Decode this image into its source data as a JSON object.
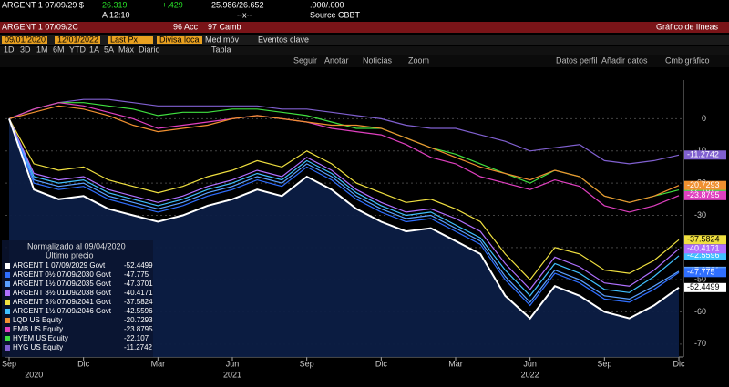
{
  "header": {
    "row1": [
      "ARGENT 1 07/09/29 $",
      "26.319",
      "+.429",
      "25.986/26.652",
      ".000/.000"
    ],
    "row2": [
      "A 12:10",
      "--x--",
      "Source CBBT"
    ],
    "bar": [
      "ARGENT 1 07/09/2C",
      "96 Acc",
      "97 Camb",
      "Gráfico de líneas"
    ],
    "settings": [
      "09/01/2020",
      "12/01/2022",
      "Last Px",
      "Divisa local",
      "Med móv",
      "Eventos clave"
    ],
    "periods": [
      "1D",
      "3D",
      "1M",
      "6M",
      "YTD",
      "1A",
      "5A",
      "Máx",
      "Diario",
      "Tabla"
    ],
    "tools": [
      "Seguir",
      "Anotar",
      "Noticias",
      "Zoom",
      "Datos perfil",
      "Añadir datos",
      "Cmb gráfico"
    ]
  },
  "chart_data": {
    "type": "line",
    "legend_title": "Normalizado al 09/04/2020",
    "legend_subtitle": "Último precio",
    "x": [
      "2020-09",
      "2020-10",
      "2020-11",
      "2020-12",
      "2021-01",
      "2021-02",
      "2021-03",
      "2021-04",
      "2021-05",
      "2021-06",
      "2021-07",
      "2021-08",
      "2021-09",
      "2021-10",
      "2021-11",
      "2021-12",
      "2022-01",
      "2022-02",
      "2022-03",
      "2022-04",
      "2022-05",
      "2022-06",
      "2022-07",
      "2022-08",
      "2022-09",
      "2022-10",
      "2022-11",
      "2022-12"
    ],
    "xlim": [
      "2020-09",
      "2022-12"
    ],
    "xticks": [
      {
        "value": "2020-09",
        "label": "Sep"
      },
      {
        "value": "2020-12",
        "label": "Dic"
      },
      {
        "value": "2021-03",
        "label": "Mar"
      },
      {
        "value": "2021-06",
        "label": "Jun"
      },
      {
        "value": "2021-09",
        "label": "Sep"
      },
      {
        "value": "2021-12",
        "label": "Dic"
      },
      {
        "value": "2022-03",
        "label": "Mar"
      },
      {
        "value": "2022-06",
        "label": "Jun"
      },
      {
        "value": "2022-09",
        "label": "Sep"
      },
      {
        "value": "2022-12",
        "label": "Dic"
      }
    ],
    "year_labels": [
      {
        "value": "2020-10",
        "label": "2020"
      },
      {
        "value": "2021-06",
        "label": "2021"
      },
      {
        "value": "2022-06",
        "label": "2022"
      }
    ],
    "ylim": [
      -74,
      12
    ],
    "yticks": [
      0,
      -10,
      -20,
      -30,
      -40,
      -50,
      -60,
      -70
    ],
    "series": [
      {
        "name": "ARGENT 1 07/09/2029 Govt",
        "color": "#ffffff",
        "area": true,
        "values": [
          0,
          -22,
          -25,
          -24,
          -28,
          -30,
          -32,
          -30,
          -27,
          -25,
          -22,
          -24,
          -18,
          -22,
          -28,
          -32,
          -35,
          -34,
          -38,
          -42,
          -55,
          -62,
          -52,
          -55,
          -60,
          -62,
          -58,
          -52.4499
        ]
      },
      {
        "name": "ARGENT 0½ 07/09/2030 Govt",
        "color": "#2f6fff",
        "values": [
          0,
          -20,
          -22,
          -21,
          -25,
          -27,
          -29,
          -27,
          -24,
          -22,
          -19,
          -21,
          -15,
          -19,
          -25,
          -29,
          -32,
          -31,
          -35,
          -39,
          -50,
          -58,
          -48,
          -51,
          -56,
          -57,
          -53,
          -47.775
        ]
      },
      {
        "name": "ARGENT 1½ 07/09/2035 Govt",
        "color": "#5aa0ff",
        "values": [
          0,
          -19,
          -21,
          -20,
          -24,
          -26,
          -28,
          -26,
          -23,
          -21,
          -18,
          -20,
          -14,
          -18,
          -24,
          -28,
          -31,
          -30,
          -34,
          -38,
          -49,
          -57,
          -47,
          -50,
          -55,
          -56,
          -52,
          -47.3701
        ]
      },
      {
        "name": "ARGENT 3½ 01/09/2038 Govt",
        "color": "#b070ff",
        "values": [
          0,
          -17,
          -19,
          -18,
          -22,
          -24,
          -26,
          -24,
          -21,
          -19,
          -16,
          -18,
          -12,
          -16,
          -22,
          -26,
          -29,
          -28,
          -31,
          -35,
          -45,
          -53,
          -43,
          -46,
          -51,
          -52,
          -47,
          -40.4171
        ]
      },
      {
        "name": "ARGENT 3⅞ 07/09/2041 Govt",
        "color": "#f0e040",
        "values": [
          0,
          -14,
          -16,
          -15,
          -19,
          -21,
          -23,
          -21,
          -18,
          -16,
          -13,
          -15,
          -10,
          -14,
          -20,
          -23,
          -26,
          -25,
          -28,
          -32,
          -42,
          -50,
          -40,
          -42,
          -47,
          -48,
          -44,
          -37.5824
        ]
      },
      {
        "name": "ARGENT 1½ 07/09/2046 Govt",
        "color": "#40c0ff",
        "values": [
          0,
          -18,
          -20,
          -19,
          -23,
          -25,
          -27,
          -25,
          -22,
          -20,
          -17,
          -19,
          -13,
          -17,
          -23,
          -27,
          -30,
          -29,
          -33,
          -37,
          -47,
          -55,
          -45,
          -48,
          -53,
          -54,
          -49,
          -42.5596
        ]
      },
      {
        "name": "LQD US Equity",
        "color": "#f09030",
        "values": [
          0,
          2,
          4,
          3,
          1,
          -2,
          -4,
          -3,
          -2,
          0,
          1,
          0,
          -1,
          -2,
          -2,
          -3,
          -6,
          -9,
          -12,
          -15,
          -17,
          -19,
          -16,
          -18,
          -24,
          -26,
          -24,
          -20.7293
        ]
      },
      {
        "name": "EMB US Equity",
        "color": "#e040c0",
        "values": [
          0,
          3,
          5,
          4,
          2,
          0,
          -3,
          -2,
          -1,
          0,
          1,
          0,
          -1,
          -3,
          -4,
          -5,
          -8,
          -12,
          -14,
          -18,
          -20,
          -22,
          -19,
          -21,
          -27,
          -29,
          -27,
          -23.8795
        ]
      },
      {
        "name": "HYEM US Equity",
        "color": "#40e040",
        "values": [
          0,
          3,
          5,
          5,
          4,
          3,
          1,
          2,
          2,
          3,
          3,
          2,
          1,
          -1,
          -3,
          -3,
          -6,
          -9,
          -11,
          -14,
          -17,
          -20,
          -16,
          -18,
          -24,
          -26,
          -24,
          -22.107
        ]
      },
      {
        "name": "HYG US Equity",
        "color": "#8060d0",
        "values": [
          0,
          3,
          5,
          6,
          6,
          5,
          4,
          4,
          4,
          4,
          4,
          3,
          3,
          2,
          1,
          0,
          -2,
          -3,
          -3,
          -5,
          -7,
          -10,
          -9,
          -8,
          -13,
          -14,
          -13,
          -11.2742
        ]
      }
    ]
  }
}
